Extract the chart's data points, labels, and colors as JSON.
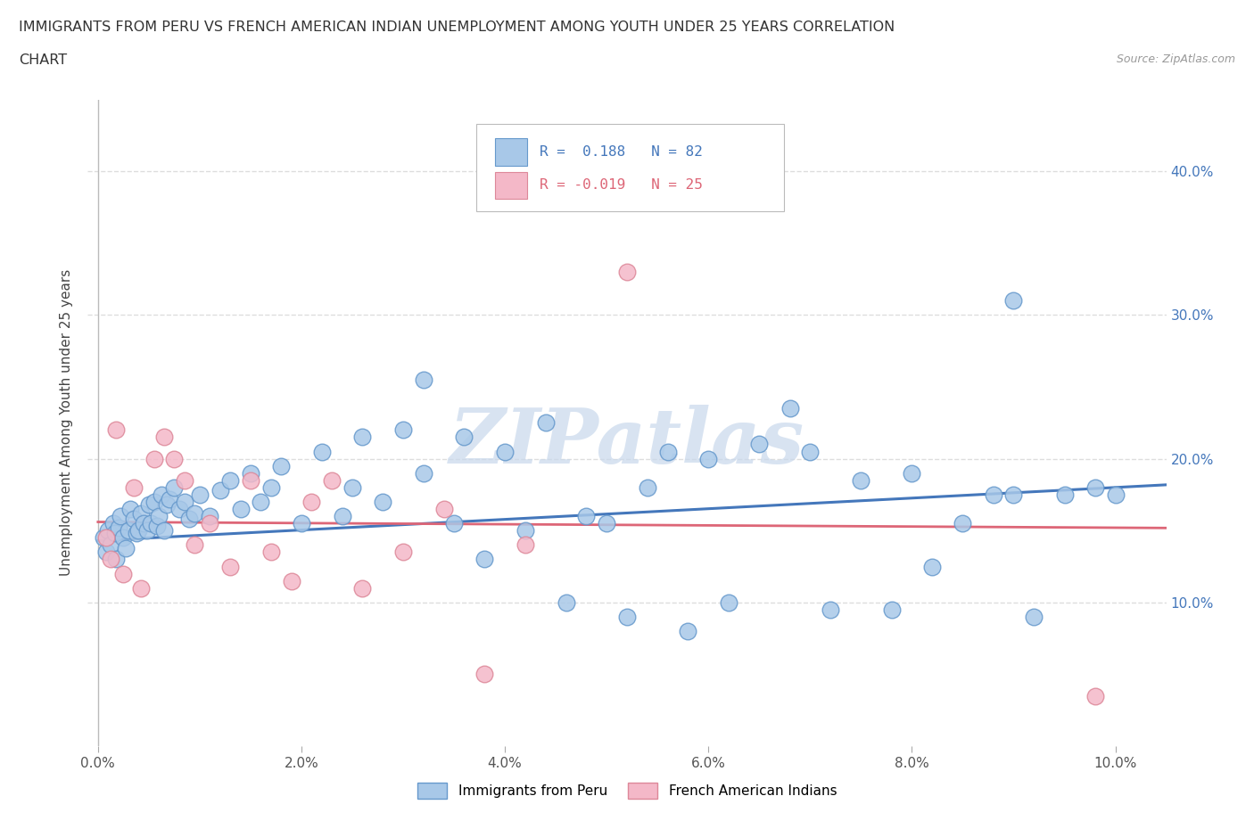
{
  "title_line1": "IMMIGRANTS FROM PERU VS FRENCH AMERICAN INDIAN UNEMPLOYMENT AMONG YOUTH UNDER 25 YEARS CORRELATION",
  "title_line2": "CHART",
  "source_text": "Source: ZipAtlas.com",
  "ylabel": "Unemployment Among Youth under 25 years",
  "xlim": [
    0.0,
    10.5
  ],
  "ylim": [
    0.0,
    45.0
  ],
  "blue_R": 0.188,
  "blue_N": 82,
  "pink_R": -0.019,
  "pink_N": 25,
  "blue_color": "#A8C8E8",
  "pink_color": "#F4B8C8",
  "blue_edge_color": "#6699CC",
  "pink_edge_color": "#DD8899",
  "blue_line_color": "#4477BB",
  "pink_line_color": "#DD6677",
  "watermark_color": "#C8D8EC",
  "background_color": "#FFFFFF",
  "grid_color": "#DDDDDD",
  "blue_scatter_x": [
    0.05,
    0.08,
    0.1,
    0.12,
    0.15,
    0.17,
    0.18,
    0.2,
    0.22,
    0.25,
    0.27,
    0.3,
    0.32,
    0.35,
    0.38,
    0.4,
    0.42,
    0.45,
    0.48,
    0.5,
    0.52,
    0.55,
    0.58,
    0.6,
    0.62,
    0.65,
    0.68,
    0.7,
    0.75,
    0.8,
    0.85,
    0.9,
    0.95,
    1.0,
    1.1,
    1.2,
    1.3,
    1.4,
    1.5,
    1.6,
    1.7,
    1.8,
    2.0,
    2.2,
    2.4,
    2.5,
    2.6,
    2.8,
    3.0,
    3.2,
    3.5,
    3.6,
    3.8,
    4.0,
    4.2,
    4.4,
    4.6,
    4.8,
    5.0,
    5.2,
    5.4,
    5.6,
    5.8,
    6.0,
    6.2,
    6.5,
    6.8,
    7.0,
    7.2,
    7.5,
    7.8,
    8.0,
    8.2,
    8.5,
    8.8,
    9.0,
    9.2,
    9.5,
    9.8,
    10.0,
    3.2,
    9.0
  ],
  "blue_scatter_y": [
    14.5,
    13.5,
    15.0,
    14.0,
    15.5,
    14.8,
    13.0,
    15.2,
    16.0,
    14.5,
    13.8,
    15.0,
    16.5,
    15.8,
    14.8,
    15.0,
    16.2,
    15.5,
    15.0,
    16.8,
    15.5,
    17.0,
    15.3,
    16.0,
    17.5,
    15.0,
    16.8,
    17.2,
    18.0,
    16.5,
    17.0,
    15.8,
    16.2,
    17.5,
    16.0,
    17.8,
    18.5,
    16.5,
    19.0,
    17.0,
    18.0,
    19.5,
    15.5,
    20.5,
    16.0,
    18.0,
    21.5,
    17.0,
    22.0,
    19.0,
    15.5,
    21.5,
    13.0,
    20.5,
    15.0,
    22.5,
    10.0,
    16.0,
    15.5,
    9.0,
    18.0,
    20.5,
    8.0,
    20.0,
    10.0,
    21.0,
    23.5,
    20.5,
    9.5,
    18.5,
    9.5,
    19.0,
    12.5,
    15.5,
    17.5,
    17.5,
    9.0,
    17.5,
    18.0,
    17.5,
    25.5,
    31.0
  ],
  "pink_scatter_x": [
    0.08,
    0.12,
    0.18,
    0.25,
    0.35,
    0.42,
    0.55,
    0.65,
    0.75,
    0.85,
    0.95,
    1.1,
    1.3,
    1.5,
    1.7,
    1.9,
    2.1,
    2.3,
    2.6,
    3.0,
    3.4,
    3.8,
    4.2,
    5.2,
    9.8
  ],
  "pink_scatter_y": [
    14.5,
    13.0,
    22.0,
    12.0,
    18.0,
    11.0,
    20.0,
    21.5,
    20.0,
    18.5,
    14.0,
    15.5,
    12.5,
    18.5,
    13.5,
    11.5,
    17.0,
    18.5,
    11.0,
    13.5,
    16.5,
    5.0,
    14.0,
    33.0,
    3.5
  ],
  "legend_label1": "Immigrants from Peru",
  "legend_label2": "French American Indians"
}
